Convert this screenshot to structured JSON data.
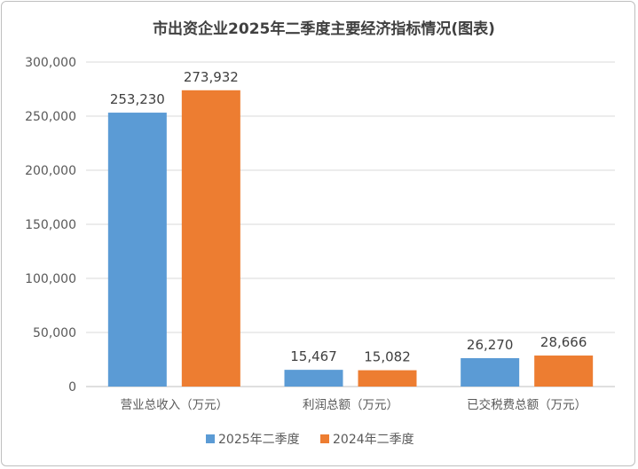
{
  "chart_data": {
    "type": "bar",
    "title": "市出资企业2025年二季度主要经济指标情况(图表)",
    "categories": [
      "营业总收入（万元）",
      "利润总额（万元）",
      "已交税费总额（万元）"
    ],
    "series": [
      {
        "name": "2025年二季度",
        "color": "#5b9bd5",
        "values": [
          253230,
          15467,
          26270
        ],
        "labels": [
          "253,230",
          "15,467",
          "26,270"
        ]
      },
      {
        "name": "2024年二季度",
        "color": "#ed7d31",
        "values": [
          273932,
          15082,
          28666
        ],
        "labels": [
          "273,932",
          "15,082",
          "28,666"
        ]
      }
    ],
    "ylim": [
      0,
      300000
    ],
    "yticks": [
      0,
      50000,
      100000,
      150000,
      200000,
      250000,
      300000
    ],
    "ytick_labels": [
      "0",
      "50,000",
      "100,000",
      "150,000",
      "200,000",
      "250,000",
      "300,000"
    ],
    "grid": true,
    "legend": "bottom"
  }
}
